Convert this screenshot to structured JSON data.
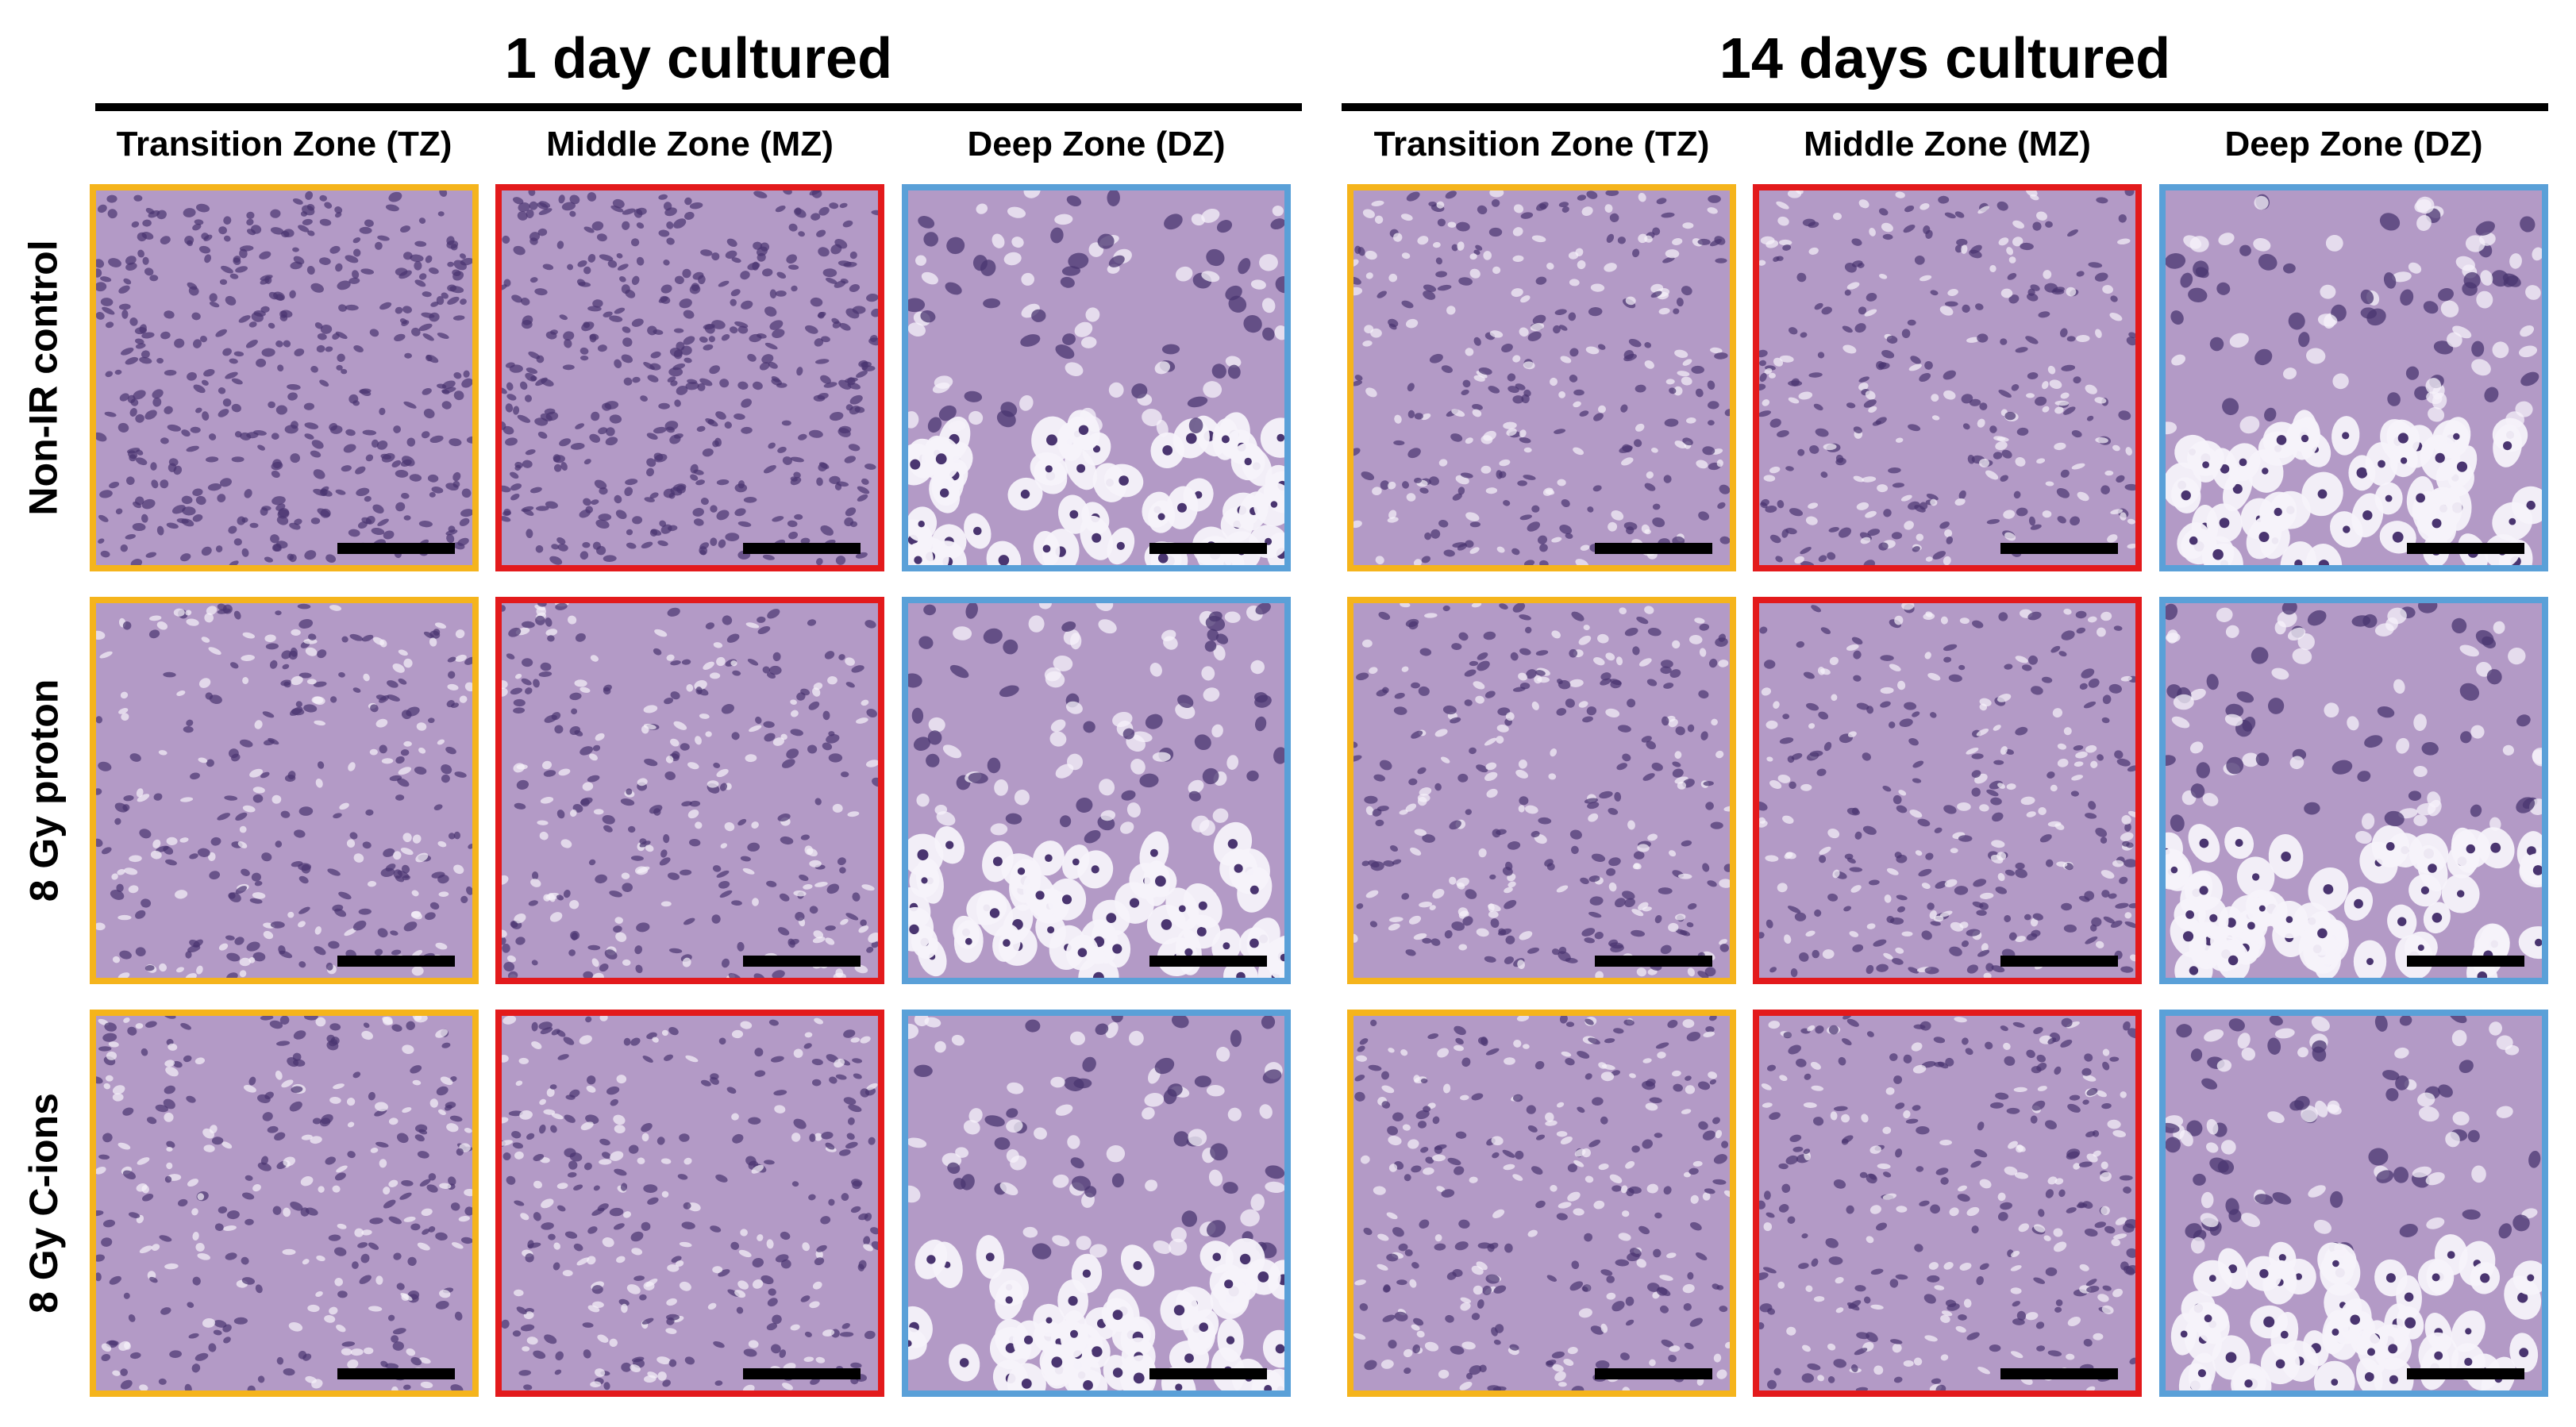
{
  "groups": [
    {
      "title": "1 day cultured"
    },
    {
      "title": "14 days cultured"
    }
  ],
  "zones": [
    {
      "label": "Transition Zone (TZ)",
      "color": "#f5b41c"
    },
    {
      "label": "Middle Zone (MZ)",
      "color": "#e31a1c"
    },
    {
      "label": "Deep Zone (DZ)",
      "color": "#5aa0d8"
    }
  ],
  "rows": [
    {
      "label": "Non-IR control"
    },
    {
      "label": "8 Gy proton"
    },
    {
      "label": "8 Gy C-ions"
    }
  ],
  "colors": {
    "matrix": "#b39ac6",
    "nucleus": "#4a3570",
    "lacuna": "#f6f2fa",
    "scale_bar": "#000000"
  }
}
